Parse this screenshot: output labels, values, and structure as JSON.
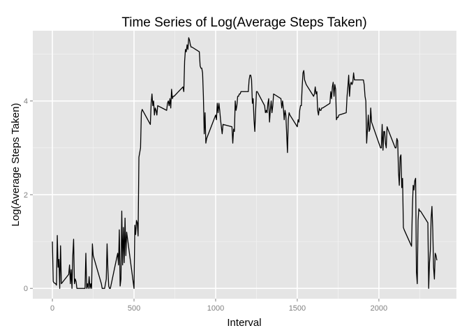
{
  "chart_data": {
    "type": "line",
    "title": "Time Series of Log(Average Steps Taken)",
    "xlabel": "Interval",
    "ylabel": "Log(Average Steps Taken)",
    "xlim": [
      -120,
      2475
    ],
    "ylim": [
      -0.22,
      5.5
    ],
    "x_ticks": [
      0,
      500,
      1000,
      1500,
      2000
    ],
    "x_tick_labels": [
      "0",
      "500",
      "1000",
      "1500",
      "2000"
    ],
    "y_ticks": [
      0,
      2,
      4
    ],
    "y_tick_labels": [
      "0",
      "2",
      "4"
    ],
    "grid": true,
    "legend": "none",
    "colors": {
      "panel": "#e5e5e5",
      "grid_major": "#ffffff",
      "grid_minor": "#f2f2f2",
      "line": "#000000",
      "tick": "#7f7f7f"
    },
    "series": [
      {
        "points": [
          [
            0,
            1.0
          ],
          [
            5,
            0.15
          ],
          [
            10,
            0.12
          ],
          [
            20,
            0.1
          ],
          [
            25,
            0.07
          ],
          [
            30,
            1.13
          ],
          [
            35,
            0.45
          ],
          [
            40,
            0.62
          ],
          [
            45,
            0.0
          ],
          [
            50,
            0.91
          ],
          [
            55,
            0.1
          ],
          [
            100,
            0.3
          ],
          [
            105,
            0.5
          ],
          [
            110,
            0.1
          ],
          [
            115,
            0.4
          ],
          [
            120,
            0.0
          ],
          [
            125,
            0.7
          ],
          [
            130,
            1.05
          ],
          [
            135,
            0.1
          ],
          [
            140,
            0.2
          ],
          [
            145,
            0.15
          ],
          [
            150,
            0.0
          ],
          [
            200,
            0.0
          ],
          [
            205,
            0.75
          ],
          [
            210,
            0.0
          ],
          [
            215,
            0.1
          ],
          [
            220,
            0.0
          ],
          [
            225,
            0.25
          ],
          [
            230,
            0.0
          ],
          [
            235,
            0.1
          ],
          [
            240,
            0.0
          ],
          [
            245,
            0.95
          ],
          [
            250,
            0.7
          ],
          [
            300,
            0.1
          ],
          [
            305,
            0.0
          ],
          [
            320,
            0.0
          ],
          [
            330,
            0.2
          ],
          [
            335,
            0.95
          ],
          [
            340,
            0.4
          ],
          [
            345,
            0.05
          ],
          [
            350,
            0.0
          ],
          [
            355,
            0.0
          ],
          [
            400,
            0.75
          ],
          [
            405,
            0.5
          ],
          [
            410,
            1.25
          ],
          [
            415,
            0.05
          ],
          [
            420,
            0.2
          ],
          [
            425,
            1.65
          ],
          [
            430,
            0.5
          ],
          [
            435,
            1.3
          ],
          [
            440,
            0.55
          ],
          [
            445,
            1.5
          ],
          [
            450,
            0.7
          ],
          [
            455,
            1.2
          ],
          [
            500,
            0.0
          ],
          [
            505,
            1.35
          ],
          [
            510,
            1.15
          ],
          [
            515,
            1.45
          ],
          [
            520,
            1.4
          ],
          [
            525,
            1.12
          ],
          [
            530,
            2.8
          ],
          [
            540,
            3.0
          ],
          [
            545,
            3.75
          ],
          [
            550,
            3.82
          ],
          [
            600,
            3.5
          ],
          [
            605,
            3.95
          ],
          [
            610,
            4.15
          ],
          [
            615,
            3.9
          ],
          [
            620,
            4.0
          ],
          [
            625,
            3.7
          ],
          [
            630,
            3.85
          ],
          [
            635,
            3.8
          ],
          [
            640,
            3.7
          ],
          [
            645,
            3.9
          ],
          [
            700,
            3.8
          ],
          [
            705,
            3.95
          ],
          [
            710,
            4.0
          ],
          [
            715,
            3.9
          ],
          [
            720,
            4.05
          ],
          [
            725,
            3.85
          ],
          [
            730,
            4.25
          ],
          [
            735,
            4.05
          ],
          [
            740,
            4.1
          ],
          [
            745,
            4.1
          ],
          [
            800,
            4.3
          ],
          [
            805,
            4.2
          ],
          [
            810,
            4.85
          ],
          [
            815,
            5.1
          ],
          [
            820,
            5.05
          ],
          [
            825,
            5.2
          ],
          [
            830,
            5.1
          ],
          [
            835,
            5.35
          ],
          [
            840,
            5.3
          ],
          [
            845,
            5.2
          ],
          [
            850,
            5.15
          ],
          [
            855,
            5.15
          ],
          [
            900,
            5.05
          ],
          [
            905,
            4.75
          ],
          [
            910,
            4.7
          ],
          [
            915,
            4.7
          ],
          [
            920,
            4.6
          ],
          [
            925,
            4.1
          ],
          [
            930,
            3.3
          ],
          [
            935,
            3.75
          ],
          [
            940,
            3.1
          ],
          [
            945,
            3.2
          ],
          [
            1000,
            3.7
          ],
          [
            1005,
            3.6
          ],
          [
            1010,
            3.95
          ],
          [
            1015,
            3.75
          ],
          [
            1020,
            3.95
          ],
          [
            1025,
            3.8
          ],
          [
            1030,
            3.6
          ],
          [
            1035,
            3.45
          ],
          [
            1040,
            3.3
          ],
          [
            1045,
            3.5
          ],
          [
            1100,
            3.45
          ],
          [
            1105,
            3.1
          ],
          [
            1110,
            3.4
          ],
          [
            1115,
            3.35
          ],
          [
            1120,
            4.0
          ],
          [
            1125,
            3.8
          ],
          [
            1130,
            3.9
          ],
          [
            1135,
            4.1
          ],
          [
            1140,
            4.1
          ],
          [
            1145,
            4.15
          ],
          [
            1150,
            4.15
          ],
          [
            1155,
            4.2
          ],
          [
            1200,
            4.2
          ],
          [
            1205,
            4.45
          ],
          [
            1210,
            4.55
          ],
          [
            1215,
            4.55
          ],
          [
            1220,
            4.45
          ],
          [
            1225,
            3.95
          ],
          [
            1230,
            4.05
          ],
          [
            1235,
            3.6
          ],
          [
            1240,
            3.35
          ],
          [
            1245,
            3.8
          ],
          [
            1250,
            4.2
          ],
          [
            1255,
            4.2
          ],
          [
            1300,
            3.9
          ],
          [
            1305,
            3.75
          ],
          [
            1310,
            3.8
          ],
          [
            1315,
            3.75
          ],
          [
            1320,
            3.95
          ],
          [
            1325,
            4.05
          ],
          [
            1330,
            3.55
          ],
          [
            1335,
            3.8
          ],
          [
            1340,
            4.0
          ],
          [
            1345,
            3.75
          ],
          [
            1350,
            3.9
          ],
          [
            1355,
            4.15
          ],
          [
            1400,
            4.05
          ],
          [
            1405,
            3.85
          ],
          [
            1410,
            4.0
          ],
          [
            1415,
            3.85
          ],
          [
            1420,
            3.6
          ],
          [
            1425,
            3.8
          ],
          [
            1430,
            3.7
          ],
          [
            1435,
            3.3
          ],
          [
            1440,
            2.9
          ],
          [
            1445,
            3.6
          ],
          [
            1450,
            3.75
          ],
          [
            1455,
            3.7
          ],
          [
            1500,
            3.45
          ],
          [
            1505,
            3.6
          ],
          [
            1510,
            3.55
          ],
          [
            1515,
            3.8
          ],
          [
            1520,
            3.9
          ],
          [
            1525,
            3.9
          ],
          [
            1530,
            4.3
          ],
          [
            1535,
            4.6
          ],
          [
            1540,
            4.65
          ],
          [
            1545,
            4.45
          ],
          [
            1550,
            4.4
          ],
          [
            1555,
            4.35
          ],
          [
            1600,
            4.1
          ],
          [
            1605,
            4.15
          ],
          [
            1610,
            4.3
          ],
          [
            1615,
            4.15
          ],
          [
            1620,
            4.2
          ],
          [
            1625,
            3.8
          ],
          [
            1630,
            3.7
          ],
          [
            1635,
            3.85
          ],
          [
            1640,
            3.8
          ],
          [
            1645,
            3.8
          ],
          [
            1650,
            3.85
          ],
          [
            1655,
            3.85
          ],
          [
            1700,
            3.95
          ],
          [
            1705,
            4.2
          ],
          [
            1710,
            4.05
          ],
          [
            1715,
            4.3
          ],
          [
            1720,
            4.4
          ],
          [
            1725,
            4.1
          ],
          [
            1730,
            4.35
          ],
          [
            1735,
            4.25
          ],
          [
            1740,
            3.6
          ],
          [
            1745,
            3.65
          ],
          [
            1750,
            3.65
          ],
          [
            1755,
            3.7
          ],
          [
            1800,
            3.75
          ],
          [
            1805,
            4.1
          ],
          [
            1810,
            4.3
          ],
          [
            1815,
            4.55
          ],
          [
            1820,
            4.1
          ],
          [
            1825,
            4.35
          ],
          [
            1830,
            4.4
          ],
          [
            1835,
            4.35
          ],
          [
            1840,
            4.4
          ],
          [
            1845,
            4.6
          ],
          [
            1850,
            4.45
          ],
          [
            1855,
            4.45
          ],
          [
            1900,
            4.45
          ],
          [
            1905,
            4.45
          ],
          [
            1910,
            4.35
          ],
          [
            1915,
            4.1
          ],
          [
            1920,
            4.0
          ],
          [
            1925,
            3.1
          ],
          [
            1930,
            3.4
          ],
          [
            1935,
            3.7
          ],
          [
            1940,
            3.35
          ],
          [
            1945,
            3.4
          ],
          [
            1950,
            3.85
          ],
          [
            1955,
            3.55
          ],
          [
            2000,
            3.1
          ],
          [
            2005,
            3.05
          ],
          [
            2010,
            3.0
          ],
          [
            2015,
            3.0
          ],
          [
            2020,
            3.5
          ],
          [
            2025,
            2.95
          ],
          [
            2030,
            3.35
          ],
          [
            2035,
            3.35
          ],
          [
            2040,
            3.1
          ],
          [
            2045,
            3.0
          ],
          [
            2050,
            3.45
          ],
          [
            2055,
            3.4
          ],
          [
            2100,
            3.0
          ],
          [
            2105,
            3.0
          ],
          [
            2110,
            3.2
          ],
          [
            2115,
            3.15
          ],
          [
            2120,
            2.5
          ],
          [
            2125,
            2.2
          ],
          [
            2130,
            2.8
          ],
          [
            2135,
            2.85
          ],
          [
            2140,
            2.15
          ],
          [
            2145,
            2.35
          ],
          [
            2150,
            1.3
          ],
          [
            2155,
            1.25
          ],
          [
            2200,
            0.9
          ],
          [
            2205,
            1.7
          ],
          [
            2210,
            2.2
          ],
          [
            2215,
            2.1
          ],
          [
            2220,
            2.3
          ],
          [
            2225,
            2.35
          ],
          [
            2230,
            0.35
          ],
          [
            2235,
            0.1
          ],
          [
            2240,
            1.45
          ],
          [
            2245,
            1.7
          ],
          [
            2250,
            1.65
          ],
          [
            2255,
            1.65
          ],
          [
            2300,
            1.4
          ],
          [
            2305,
            0.0
          ],
          [
            2310,
            0.55
          ],
          [
            2315,
            0.8
          ],
          [
            2320,
            1.5
          ],
          [
            2325,
            1.75
          ],
          [
            2330,
            1.25
          ],
          [
            2335,
            0.45
          ],
          [
            2340,
            0.2
          ],
          [
            2345,
            0.75
          ],
          [
            2350,
            0.7
          ],
          [
            2355,
            0.6
          ]
        ]
      }
    ]
  }
}
